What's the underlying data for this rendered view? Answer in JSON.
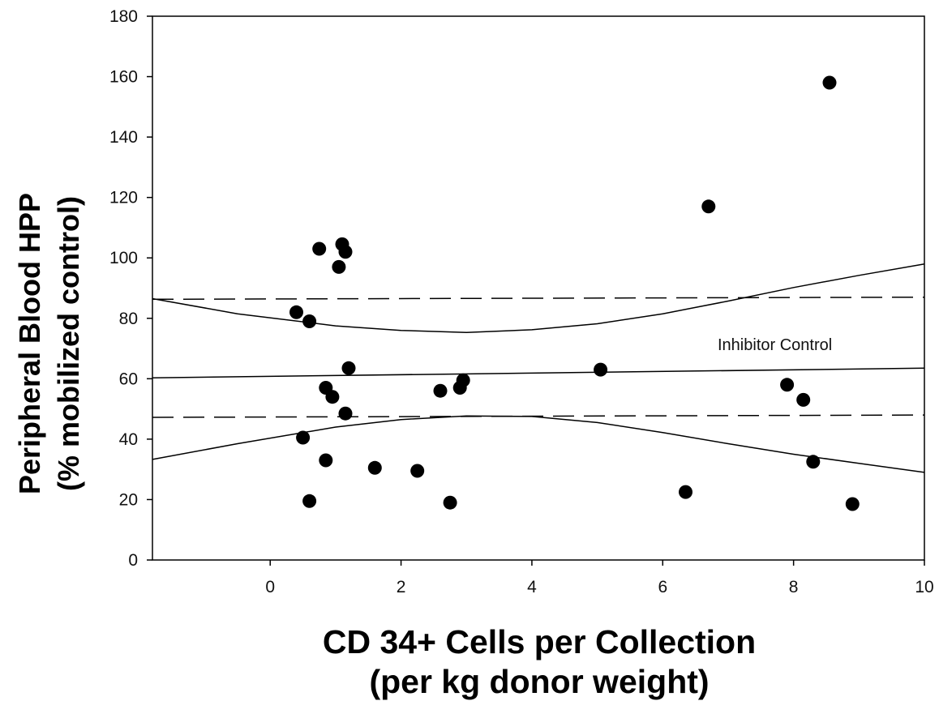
{
  "chart_data": {
    "type": "scatter",
    "xlabel": "CD 34+ Cells per Collection",
    "xlabel_sub": "(per kg donor weight)",
    "ylabel": "Peripheral Blood HPP",
    "ylabel_sub": "(% mobilized control)",
    "xlim": [
      -1.8,
      10
    ],
    "ylim": [
      0,
      180
    ],
    "x_ticks": [
      0,
      2,
      4,
      6,
      8,
      10
    ],
    "y_ticks": [
      0,
      20,
      40,
      60,
      80,
      100,
      120,
      140,
      160,
      180
    ],
    "grid": false,
    "annotation": "Inhibitor Control",
    "points": [
      {
        "x": 0.4,
        "y": 82
      },
      {
        "x": 0.6,
        "y": 79
      },
      {
        "x": 0.75,
        "y": 103
      },
      {
        "x": 1.1,
        "y": 104.5
      },
      {
        "x": 1.15,
        "y": 102
      },
      {
        "x": 1.05,
        "y": 97
      },
      {
        "x": 1.2,
        "y": 63.5
      },
      {
        "x": 0.85,
        "y": 57
      },
      {
        "x": 0.95,
        "y": 54
      },
      {
        "x": 1.15,
        "y": 48.5
      },
      {
        "x": 0.5,
        "y": 40.5
      },
      {
        "x": 0.85,
        "y": 33
      },
      {
        "x": 0.6,
        "y": 19.5
      },
      {
        "x": 1.6,
        "y": 30.5
      },
      {
        "x": 2.25,
        "y": 29.5
      },
      {
        "x": 2.6,
        "y": 56
      },
      {
        "x": 2.9,
        "y": 57
      },
      {
        "x": 2.95,
        "y": 59.5
      },
      {
        "x": 2.75,
        "y": 19
      },
      {
        "x": 5.05,
        "y": 63
      },
      {
        "x": 6.35,
        "y": 22.5
      },
      {
        "x": 6.7,
        "y": 117
      },
      {
        "x": 7.9,
        "y": 58
      },
      {
        "x": 8.15,
        "y": 53
      },
      {
        "x": 8.3,
        "y": 32.5
      },
      {
        "x": 8.9,
        "y": 18.5
      },
      {
        "x": 8.55,
        "y": 158
      }
    ],
    "lines": {
      "regression": [
        {
          "x": -1.8,
          "y": 60.3
        },
        {
          "x": 10,
          "y": 63.5
        }
      ],
      "upper_ci": [
        {
          "x": -1.8,
          "y": 86.5
        },
        {
          "x": -0.5,
          "y": 81.5
        },
        {
          "x": 1,
          "y": 77.5
        },
        {
          "x": 2,
          "y": 76
        },
        {
          "x": 3,
          "y": 75.3
        },
        {
          "x": 4,
          "y": 76.2
        },
        {
          "x": 5,
          "y": 78.2
        },
        {
          "x": 6,
          "y": 81.5
        },
        {
          "x": 7,
          "y": 85.7
        },
        {
          "x": 8,
          "y": 90.2
        },
        {
          "x": 9,
          "y": 94.2
        },
        {
          "x": 10,
          "y": 98
        }
      ],
      "lower_ci": [
        {
          "x": -1.8,
          "y": 33.3
        },
        {
          "x": -0.5,
          "y": 38.5
        },
        {
          "x": 1,
          "y": 44
        },
        {
          "x": 2,
          "y": 46.5
        },
        {
          "x": 3,
          "y": 47.7
        },
        {
          "x": 4,
          "y": 47.5
        },
        {
          "x": 5,
          "y": 45.5
        },
        {
          "x": 6,
          "y": 42.2
        },
        {
          "x": 7,
          "y": 38.5
        },
        {
          "x": 8,
          "y": 35
        },
        {
          "x": 9,
          "y": 32
        },
        {
          "x": 10,
          "y": 29
        }
      ],
      "dashed_upper": [
        {
          "x": -1.8,
          "y": 86.3
        },
        {
          "x": 10,
          "y": 87
        }
      ],
      "dashed_lower": [
        {
          "x": -1.8,
          "y": 47.2
        },
        {
          "x": 10,
          "y": 48
        }
      ]
    }
  }
}
